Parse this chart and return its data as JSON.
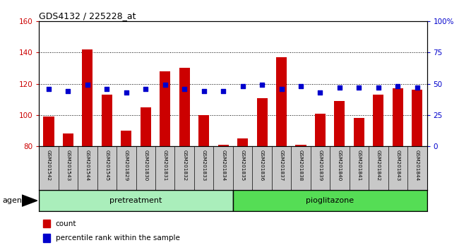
{
  "title": "GDS4132 / 225228_at",
  "samples": [
    "GSM201542",
    "GSM201543",
    "GSM201544",
    "GSM201545",
    "GSM201829",
    "GSM201830",
    "GSM201831",
    "GSM201832",
    "GSM201833",
    "GSM201834",
    "GSM201835",
    "GSM201836",
    "GSM201837",
    "GSM201838",
    "GSM201839",
    "GSM201840",
    "GSM201841",
    "GSM201842",
    "GSM201843",
    "GSM201844"
  ],
  "counts": [
    99,
    88,
    142,
    113,
    90,
    105,
    128,
    130,
    100,
    81,
    85,
    111,
    137,
    81,
    101,
    109,
    98,
    113,
    117,
    116
  ],
  "percentile_ranks": [
    46,
    44,
    49,
    46,
    43,
    46,
    49,
    46,
    44,
    44,
    48,
    49,
    46,
    48,
    43,
    47,
    47,
    47,
    48,
    47
  ],
  "ylim_left": [
    80,
    160
  ],
  "ylim_right": [
    0,
    100
  ],
  "yticks_left": [
    80,
    100,
    120,
    140,
    160
  ],
  "yticks_right": [
    0,
    25,
    50,
    75,
    100
  ],
  "yticklabels_right": [
    "0",
    "25",
    "50",
    "75",
    "100%"
  ],
  "bar_color": "#cc0000",
  "scatter_color": "#0000cc",
  "bg_color": "#c8c8c8",
  "pretreatment_color": "#aaeebb",
  "pioglitazone_color": "#55dd55",
  "agent_label": "agent",
  "pre_count": 10,
  "pio_count": 10
}
